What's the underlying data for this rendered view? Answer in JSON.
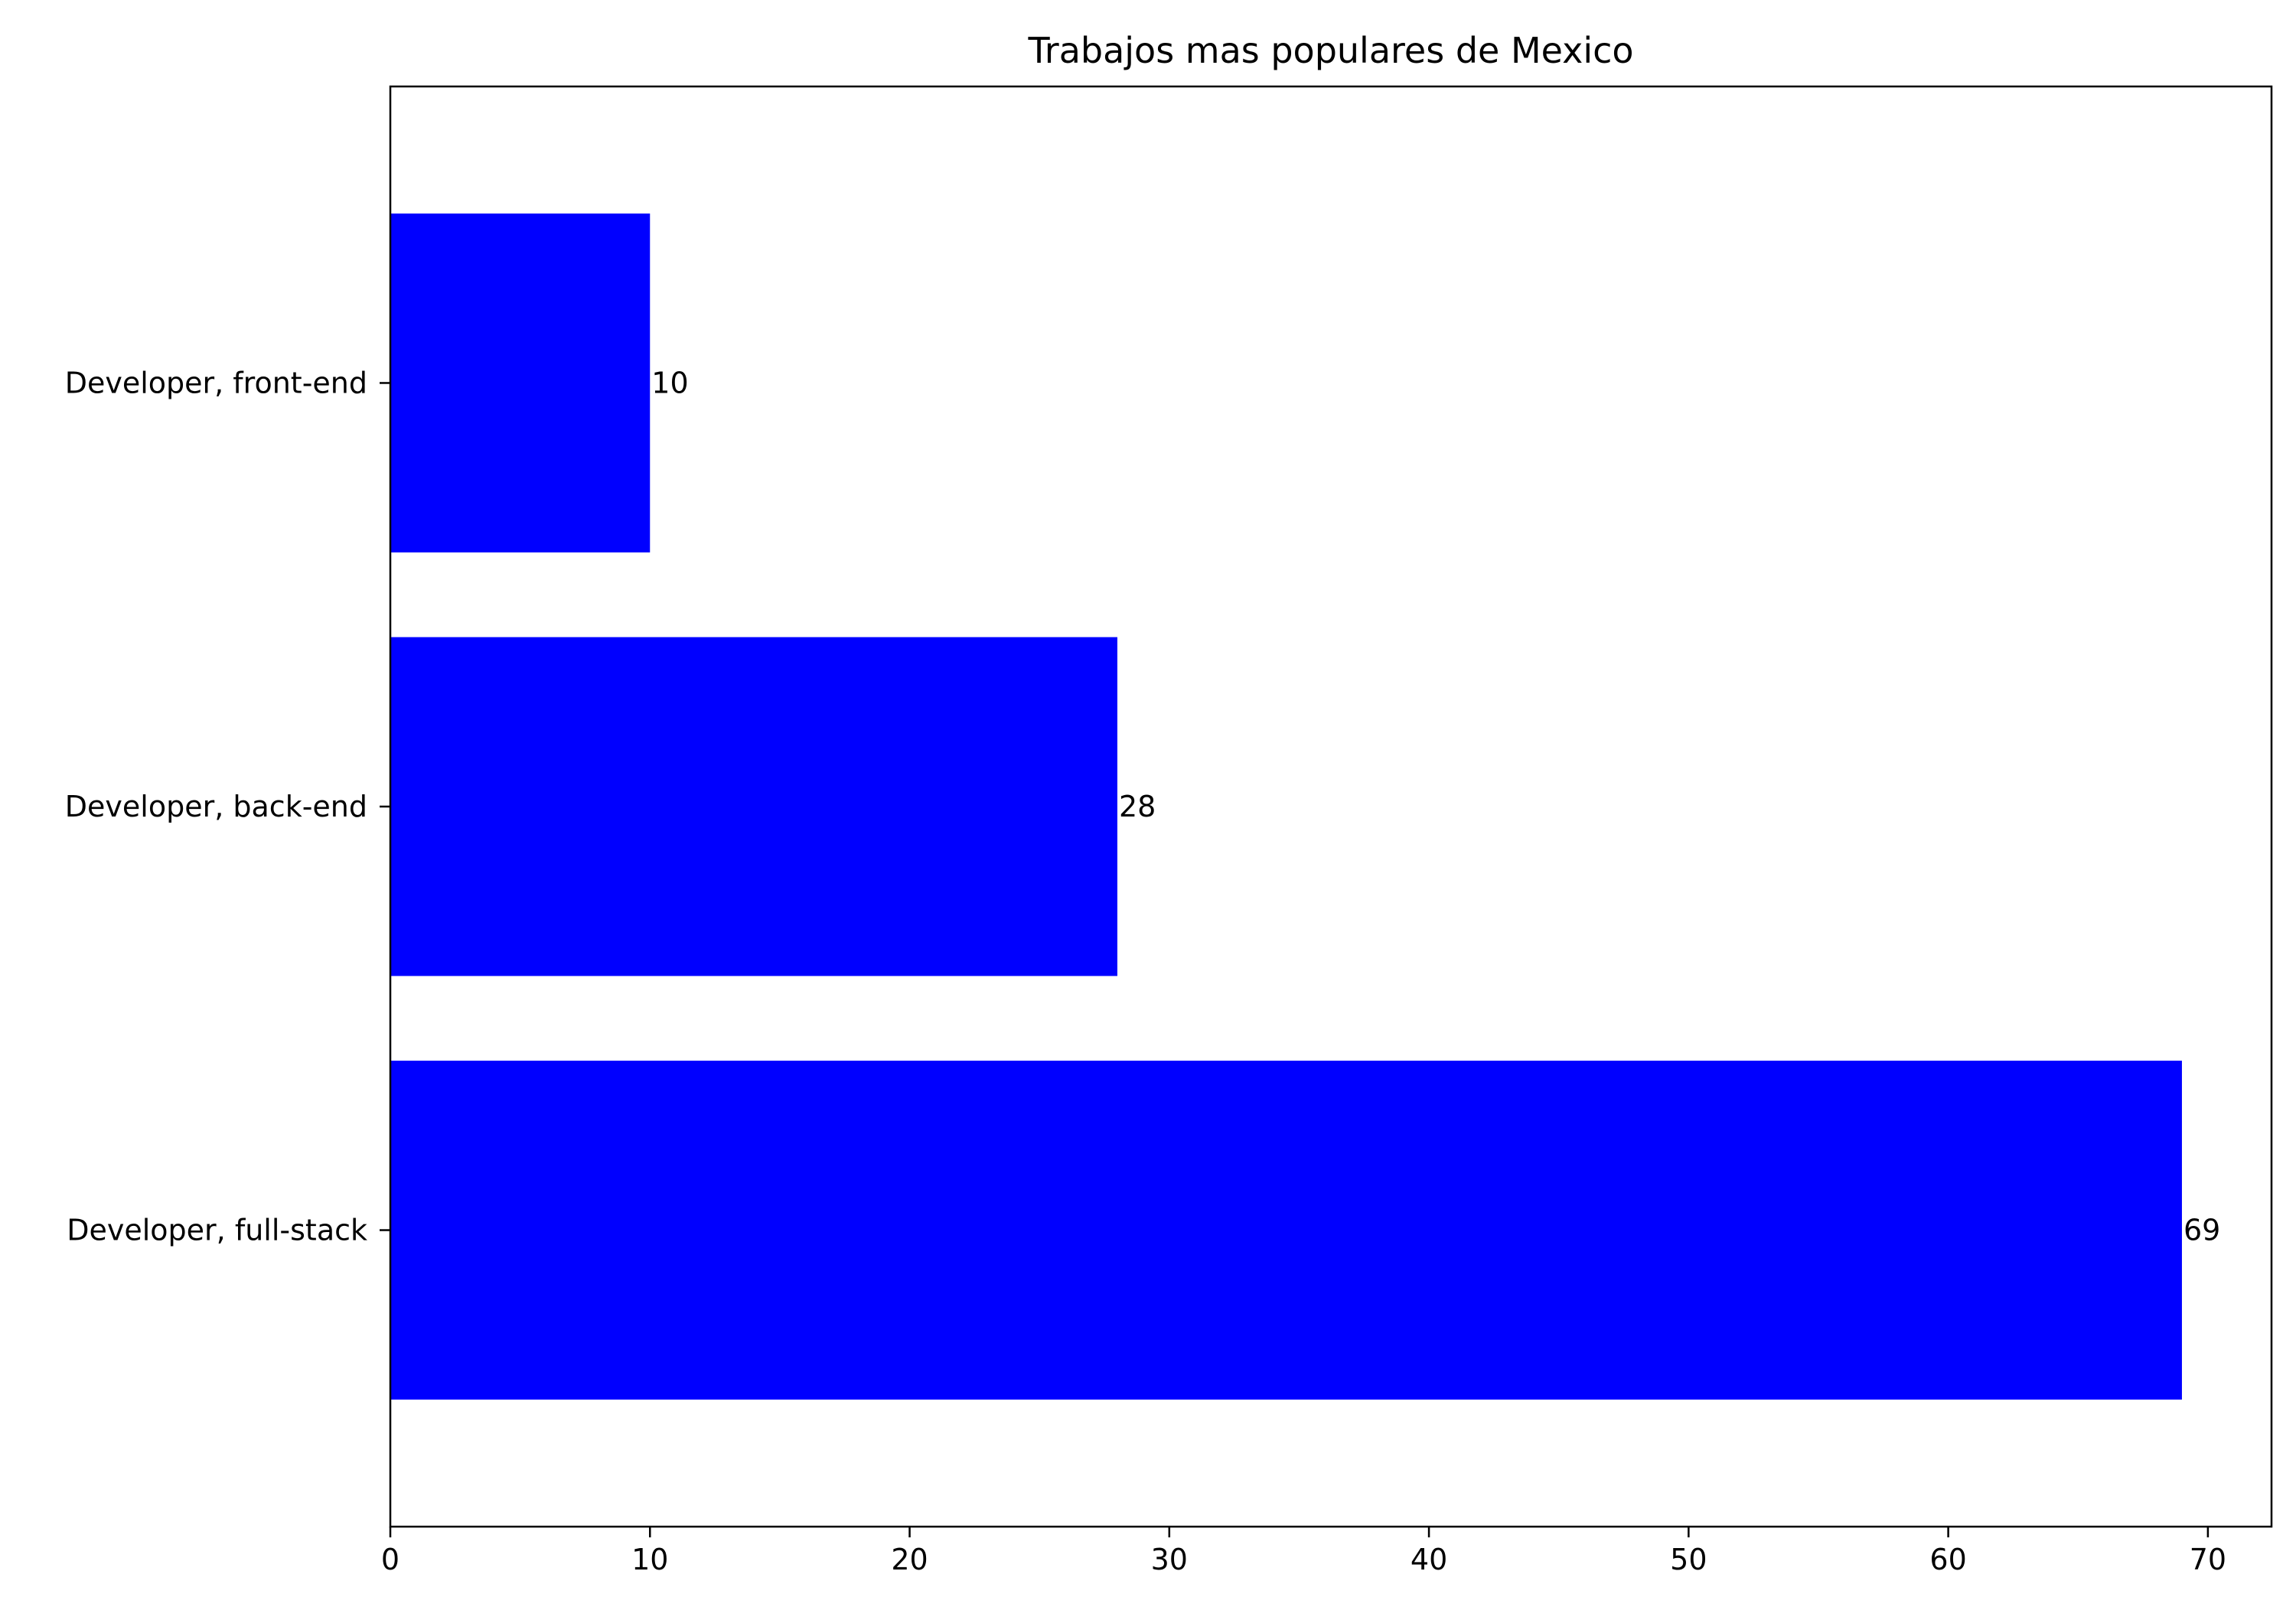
{
  "chart_data": {
    "type": "bar",
    "orientation": "horizontal",
    "title": "Trabajos mas populares de Mexico",
    "xlabel": "",
    "ylabel": "",
    "categories": [
      "Developer, full-stack",
      "Developer, back-end",
      "Developer, front-end"
    ],
    "values": [
      69,
      28,
      10
    ],
    "data_labels": [
      "69",
      "28",
      "10"
    ],
    "xlim": [
      0,
      72.45
    ],
    "xticks": [
      0,
      10,
      20,
      30,
      40,
      50,
      60,
      70
    ],
    "xtick_labels": [
      "0",
      "10",
      "20",
      "30",
      "40",
      "50",
      "60",
      "70"
    ],
    "bar_color": "#0000ff",
    "grid": false,
    "legend": "none"
  }
}
